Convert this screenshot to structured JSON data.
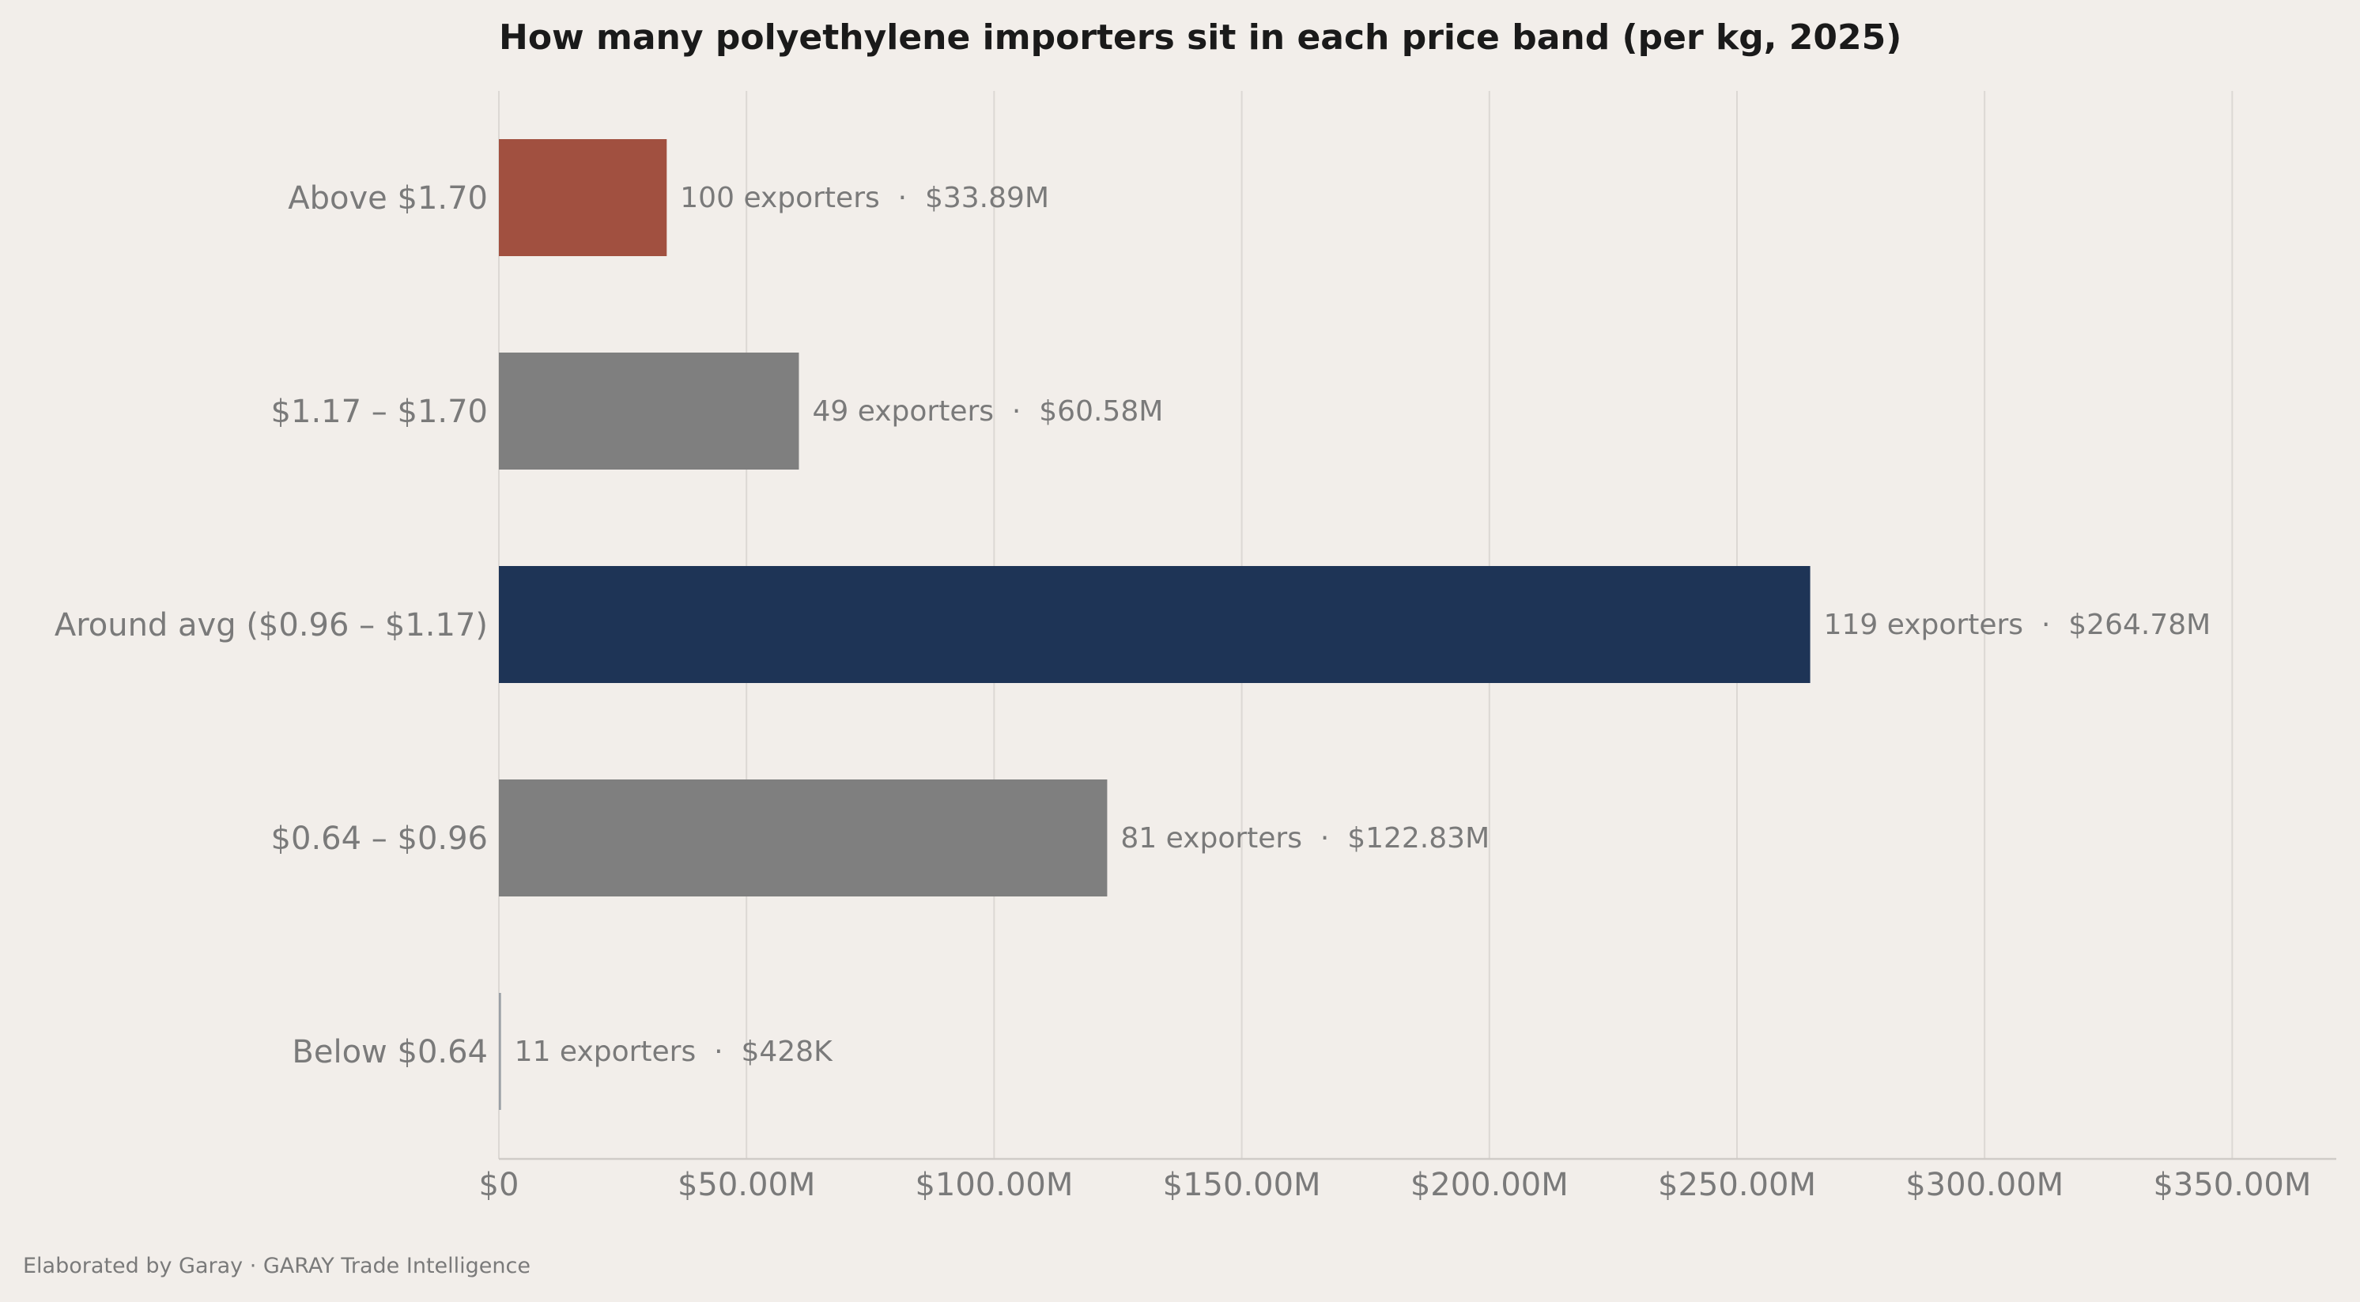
{
  "chart_data": {
    "type": "bar",
    "orientation": "horizontal",
    "title": "How many polyethylene importers sit in each price band (per kg, 2025)",
    "xlabel": "",
    "ylabel": "",
    "xlim": [
      0,
      370000000
    ],
    "xticks": [
      0,
      50000000,
      100000000,
      150000000,
      200000000,
      250000000,
      300000000,
      350000000
    ],
    "xtick_labels": [
      "$0",
      "$50.00M",
      "$100.00M",
      "$150.00M",
      "$200.00M",
      "$250.00M",
      "$300.00M",
      "$350.00M"
    ],
    "grid": "vertical",
    "categories": [
      "Above $1.70",
      "$1.17 – $1.70",
      "Around avg ($0.96 – $1.17)",
      "$0.64 – $0.96",
      "Below $0.64"
    ],
    "values": [
      33890000,
      60580000,
      264780000,
      122830000,
      428000
    ],
    "exporters": [
      100,
      49,
      119,
      81,
      11
    ],
    "data_labels": [
      "100 exporters  ·  $33.89M",
      "49 exporters  ·  $60.58M",
      "119 exporters  ·  $264.78M",
      "81 exporters  ·  $122.83M",
      "11 exporters  ·  $428K"
    ],
    "colors": [
      "#a15040",
      "#7f7f7f",
      "#1e3456",
      "#7f7f7f",
      "#9aa0a6"
    ]
  },
  "footer": "Elaborated by Garay  ·  GARAY Trade Intelligence",
  "colors": {
    "background": "#f2eeea",
    "title": "#1a1a1a",
    "text": "#7a7a7a",
    "grid": "#dcd8d4"
  }
}
